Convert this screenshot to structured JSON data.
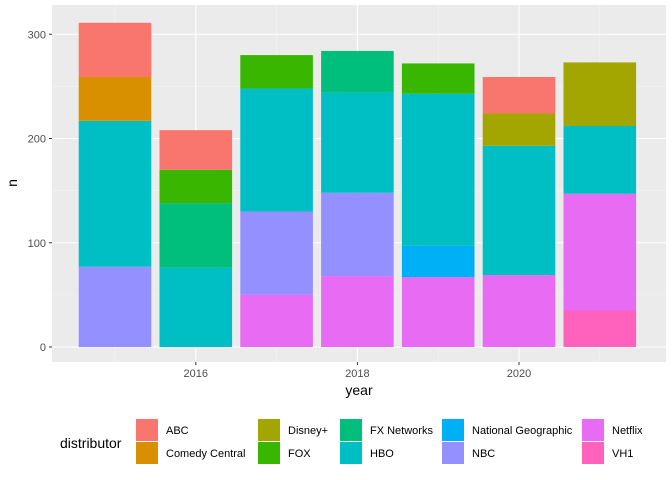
{
  "chart_data": {
    "type": "bar",
    "stacked": true,
    "title": "",
    "xlabel": "year",
    "ylabel": "n",
    "x": [
      2015,
      2016,
      2017,
      2018,
      2019,
      2020,
      2021
    ],
    "xticks": [
      "2016",
      "2018",
      "2020"
    ],
    "yticks": [
      "0",
      "100",
      "200",
      "300"
    ],
    "ylim": [
      0,
      320
    ],
    "grid": true,
    "legend_position": "bottom",
    "legend_title": "distributor",
    "series": [
      {
        "name": "ABC",
        "color": "#F8766D",
        "values": [
          52,
          38,
          0,
          0,
          0,
          35,
          0
        ]
      },
      {
        "name": "Comedy Central",
        "color": "#D89000",
        "values": [
          42,
          0,
          0,
          0,
          0,
          0,
          0
        ]
      },
      {
        "name": "Disney+",
        "color": "#A3A500",
        "values": [
          0,
          0,
          0,
          0,
          0,
          31,
          61
        ]
      },
      {
        "name": "FOX",
        "color": "#39B600",
        "values": [
          0,
          32,
          32,
          0,
          29,
          0,
          0
        ]
      },
      {
        "name": "FX Networks",
        "color": "#00BF7D",
        "values": [
          0,
          62,
          0,
          40,
          0,
          0,
          0
        ]
      },
      {
        "name": "HBO",
        "color": "#00BFC4",
        "values": [
          140,
          76,
          118,
          96,
          146,
          124,
          65
        ]
      },
      {
        "name": "National Geographic",
        "color": "#00B0F6",
        "values": [
          0,
          0,
          0,
          0,
          30,
          0,
          0
        ]
      },
      {
        "name": "NBC",
        "color": "#9590FF",
        "values": [
          77,
          0,
          80,
          80,
          0,
          0,
          0
        ]
      },
      {
        "name": "Netflix",
        "color": "#E76BF3",
        "values": [
          0,
          0,
          50,
          68,
          67,
          69,
          112
        ]
      },
      {
        "name": "VH1",
        "color": "#FF62BC",
        "values": [
          0,
          0,
          0,
          0,
          0,
          0,
          35
        ]
      }
    ]
  }
}
